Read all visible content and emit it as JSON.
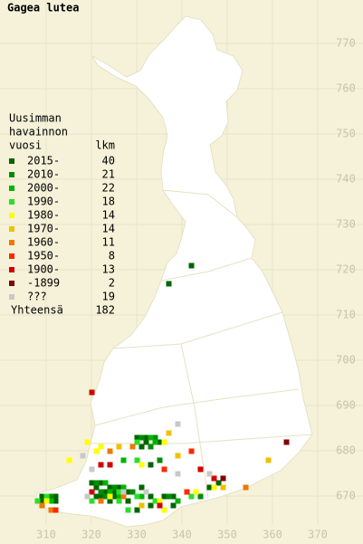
{
  "title": "Gagea lutea",
  "legend_title": [
    "Uusimman",
    "havainnon",
    "vuosi"
  ],
  "count_header": "lkm",
  "total_label": "Yhteensä",
  "total": 182,
  "xticks": [
    310,
    320,
    330,
    340,
    350,
    360,
    370
  ],
  "yticks": [
    770,
    760,
    750,
    740,
    730,
    720,
    710,
    700,
    690,
    680,
    670
  ],
  "legend": [
    {
      "label": "2015-",
      "count": 40,
      "color": "#006400",
      "squares": [
        [
          342,
          721
        ],
        [
          337,
          717
        ],
        [
          330,
          683
        ],
        [
          332,
          683
        ],
        [
          335,
          682
        ],
        [
          332,
          682
        ],
        [
          331,
          681
        ],
        [
          333,
          677
        ],
        [
          320,
          673
        ],
        [
          322,
          673
        ],
        [
          324,
          672
        ],
        [
          326,
          672
        ],
        [
          321,
          672
        ],
        [
          323,
          671
        ],
        [
          325,
          671
        ],
        [
          328,
          671
        ],
        [
          321,
          670
        ],
        [
          322,
          670
        ],
        [
          325,
          670
        ],
        [
          324,
          669
        ],
        [
          328,
          669
        ],
        [
          331,
          672
        ],
        [
          333,
          670
        ],
        [
          336,
          670
        ],
        [
          338,
          670
        ],
        [
          333,
          668
        ],
        [
          338,
          668
        ],
        [
          330,
          667
        ],
        [
          346,
          672
        ],
        [
          348,
          673
        ],
        [
          309,
          670
        ],
        [
          312,
          670
        ],
        [
          309,
          669
        ],
        [
          312,
          669
        ]
      ]
    },
    {
      "label": "2010-",
      "count": 21,
      "color": "#008c00",
      "squares": [
        [
          331,
          683
        ],
        [
          334,
          683
        ],
        [
          333,
          681
        ],
        [
          335,
          678
        ],
        [
          321,
          673
        ],
        [
          325,
          672
        ],
        [
          322,
          671
        ],
        [
          329,
          671
        ],
        [
          323,
          670
        ],
        [
          337,
          670
        ],
        [
          344,
          670
        ],
        [
          311,
          670
        ]
      ]
    },
    {
      "label": "2000-",
      "count": 22,
      "color": "#00b400",
      "squares": [
        [
          333,
          683
        ],
        [
          334,
          682
        ],
        [
          327,
          678
        ],
        [
          323,
          673
        ],
        [
          327,
          672
        ],
        [
          324,
          671
        ],
        [
          326,
          670
        ],
        [
          331,
          670
        ],
        [
          339,
          669
        ],
        [
          311,
          669
        ]
      ]
    },
    {
      "label": "1990-",
      "count": 18,
      "color": "#28e028",
      "squares": [
        [
          330,
          682
        ],
        [
          330,
          678
        ],
        [
          326,
          671
        ],
        [
          320,
          669
        ],
        [
          326,
          669
        ],
        [
          330,
          670
        ],
        [
          334,
          669
        ],
        [
          328,
          667
        ],
        [
          342,
          670
        ],
        [
          310,
          670
        ],
        [
          308,
          669
        ]
      ]
    },
    {
      "label": "1980-",
      "count": 14,
      "color": "#ffff00",
      "squares": [
        [
          336,
          682
        ],
        [
          322,
          681
        ],
        [
          319,
          682
        ],
        [
          321,
          680
        ],
        [
          315,
          678
        ],
        [
          331,
          677
        ],
        [
          324,
          670
        ],
        [
          335,
          669
        ],
        [
          336,
          667
        ],
        [
          343,
          671
        ],
        [
          347,
          672
        ],
        [
          310,
          669
        ]
      ]
    },
    {
      "label": "1970-",
      "count": 14,
      "color": "#f0c000",
      "squares": [
        [
          359,
          678
        ],
        [
          337,
          684
        ],
        [
          326,
          681
        ],
        [
          339,
          679
        ],
        [
          331,
          668
        ],
        [
          349,
          672
        ]
      ]
    },
    {
      "label": "1960-",
      "count": 11,
      "color": "#f07800",
      "squares": [
        [
          354,
          672
        ],
        [
          329,
          681
        ],
        [
          324,
          680
        ],
        [
          327,
          670
        ],
        [
          322,
          669
        ],
        [
          309,
          668
        ],
        [
          311,
          667
        ]
      ]
    },
    {
      "label": "1950-",
      "count": 8,
      "color": "#ff2800",
      "squares": [
        [
          336,
          676
        ],
        [
          342,
          680
        ],
        [
          341,
          671
        ],
        [
          312,
          667
        ]
      ]
    },
    {
      "label": "1900-",
      "count": 13,
      "color": "#d00000",
      "squares": [
        [
          320,
          693
        ],
        [
          322,
          677
        ],
        [
          324,
          677
        ],
        [
          344,
          676
        ],
        [
          320,
          671
        ],
        [
          335,
          668
        ],
        [
          347,
          674
        ]
      ]
    },
    {
      "label": "-1899",
      "count": 2,
      "color": "#800000",
      "squares": [
        [
          363,
          682
        ],
        [
          349,
          674
        ]
      ]
    },
    {
      "label": "???",
      "count": 19,
      "color": "#c8c8c8",
      "squares": [
        [
          339,
          686
        ],
        [
          318,
          679
        ],
        [
          320,
          676
        ],
        [
          339,
          675
        ],
        [
          327,
          671
        ],
        [
          319,
          670
        ],
        [
          332,
          671
        ],
        [
          346,
          675
        ]
      ]
    }
  ]
}
